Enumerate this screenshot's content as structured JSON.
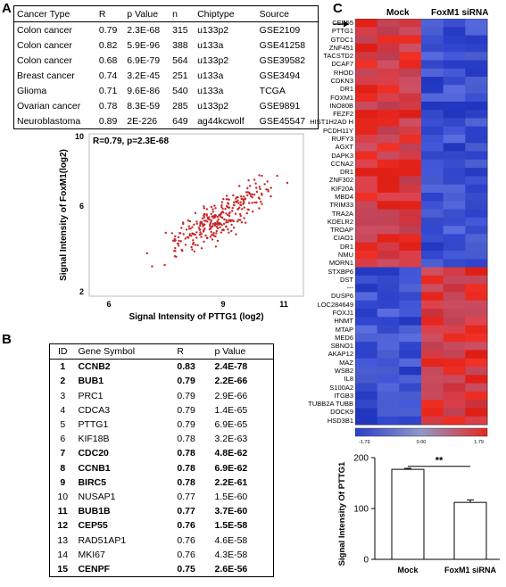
{
  "panels": {
    "a": "A",
    "b": "B",
    "c": "C"
  },
  "tableA": {
    "headers": [
      "Cancer Type",
      "R",
      "p Value",
      "n",
      "Chiptype",
      "Source"
    ],
    "rows": [
      [
        "Colon cancer",
        "0.79",
        "2.3E-68",
        "315",
        "u133p2",
        "GSE2109"
      ],
      [
        "Colon cancer",
        "0.82",
        "5.9E-96",
        "388",
        "u133a",
        "GSE41258"
      ],
      [
        "Colon cancer",
        "0.68",
        "6.9E-79",
        "564",
        "u133p2",
        "GSE39582"
      ],
      [
        "Breast cancer",
        "0.74",
        "3.2E-45",
        "251",
        "u133a",
        "GSE3494"
      ],
      [
        "Glioma",
        "0.71",
        "9.6E-86",
        "540",
        "u133a",
        "TCGA"
      ],
      [
        "Ovarian cancer",
        "0.78",
        "8.3E-59",
        "285",
        "u133p2",
        "GSE9891"
      ],
      [
        "Neuroblastoma",
        "0.89",
        "2E-226",
        "649",
        "ag44kcwolf",
        "GSE45547"
      ]
    ]
  },
  "scatter": {
    "annotation": "R=0.79, p=2.3E-68",
    "xlabel": "Signal Intensity of PTTG1 (log2)",
    "ylabel": "Signal Intensity of FoxM1(log2)",
    "xticks": [
      "6",
      "9",
      "11"
    ],
    "yticks": [
      "10",
      "6",
      "2"
    ],
    "color": "#c62828"
  },
  "tableB": {
    "headers": [
      "ID",
      "Gene Symbol",
      "R",
      "p Value"
    ],
    "rows": [
      {
        "id": "1",
        "gene": "CCNB2",
        "r": "0.83",
        "p": "2.4E-78",
        "bold": true
      },
      {
        "id": "2",
        "gene": "BUB1",
        "r": "0.79",
        "p": "2.2E-66",
        "bold": true
      },
      {
        "id": "3",
        "gene": "PRC1",
        "r": "0.79",
        "p": "2.9E-66",
        "bold": false
      },
      {
        "id": "4",
        "gene": "CDCA3",
        "r": "0.79",
        "p": "1.4E-65",
        "bold": false
      },
      {
        "id": "5",
        "gene": "PTTG1",
        "r": "0.79",
        "p": "6.9E-65",
        "bold": false
      },
      {
        "id": "6",
        "gene": "KIF18B",
        "r": "0.78",
        "p": "3.2E-63",
        "bold": false
      },
      {
        "id": "7",
        "gene": "CDC20",
        "r": "0.78",
        "p": "4.8E-62",
        "bold": true
      },
      {
        "id": "8",
        "gene": "CCNB1",
        "r": "0.78",
        "p": "6.9E-62",
        "bold": true
      },
      {
        "id": "9",
        "gene": "BIRC5",
        "r": "0.78",
        "p": "2.2E-61",
        "bold": true
      },
      {
        "id": "10",
        "gene": "NUSAP1",
        "r": "0.77",
        "p": "1.5E-60",
        "bold": false
      },
      {
        "id": "11",
        "gene": "BUB1B",
        "r": "0.77",
        "p": "3.7E-60",
        "bold": true
      },
      {
        "id": "12",
        "gene": "CEP55",
        "r": "0.76",
        "p": "1.5E-58",
        "bold": true
      },
      {
        "id": "13",
        "gene": "RAD51AP1",
        "r": "0.76",
        "p": "4.6E-58",
        "bold": false
      },
      {
        "id": "14",
        "gene": "MKI67",
        "r": "0.76",
        "p": "4.3E-58",
        "bold": false
      },
      {
        "id": "15",
        "gene": "CENPF",
        "r": "0.75",
        "p": "2.6E-56",
        "bold": true
      }
    ]
  },
  "heatmap": {
    "col_labels": [
      "Mock",
      "FoxM1 siRNA"
    ],
    "genes": [
      "CEP55",
      "PTTG1",
      "GTDC1",
      "ZNF451",
      "TACSTD2",
      "DCAF7",
      "RHOD",
      "CDKN3",
      "DR1",
      "FOXM1",
      "INO80B",
      "FEZF2",
      "HIST1H2AD H",
      "PCDH11Y",
      "RUFY3",
      "AGXT",
      "DAPK3",
      "CCNA2",
      "DR1",
      "ZNF302",
      "KIF20A",
      "MBD4",
      "TRIM33",
      "TRA2A",
      "KDELR2",
      "TROAP",
      "CIAO1",
      "DR1",
      "NMU",
      "MORN1",
      "STXBP6",
      "DST",
      "---",
      "DUSP6",
      "LOC284649",
      "FOXJ1",
      "HNMT",
      "MTAP",
      "MED6",
      "SBNO1",
      "AKAP12",
      "MAZ",
      "WSB2",
      "IL8",
      "S100A2",
      "ITGB3",
      "TUBB2A TUBB",
      "DOCK9",
      "HSD3B1"
    ],
    "scale_labels": [
      "-1.79",
      "0.00",
      "1.79"
    ],
    "colors": {
      "high": "#e8281e",
      "low": "#2a3fc8"
    }
  },
  "chart_data": {
    "type": "bar",
    "categories": [
      "Mock",
      "FoxM1 siRNA"
    ],
    "values": [
      177,
      112
    ],
    "errors": [
      2,
      5
    ],
    "ylabel": "Signal Intensity Of PTTG1",
    "ylim": [
      0,
      200
    ],
    "yticks": [
      "0",
      "100",
      "200"
    ],
    "significance": "**"
  }
}
